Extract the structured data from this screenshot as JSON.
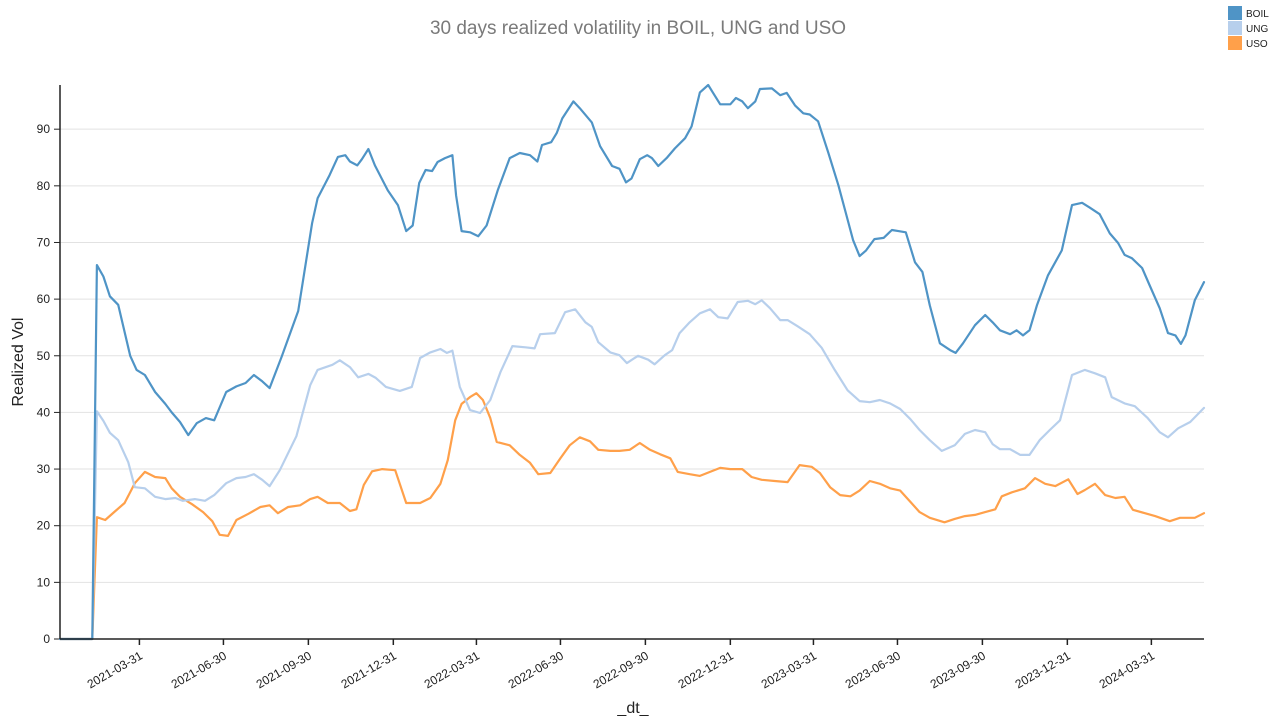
{
  "chart_data": {
    "type": "line",
    "title": "30 days realized volatility in BOIL, UNG and USO",
    "xlabel": "_dt_",
    "ylabel": "Realized Vol",
    "x_origin": "2021-01-04",
    "x_unit": "days since x_origin",
    "x_range_days": [
      0,
      1239
    ],
    "ylim": [
      0,
      97.8
    ],
    "yticks": [
      0,
      10,
      20,
      30,
      40,
      50,
      60,
      70,
      80,
      90
    ],
    "xticks": [
      "2021-03-31",
      "2021-06-30",
      "2021-09-30",
      "2021-12-31",
      "2022-03-31",
      "2022-06-30",
      "2022-09-30",
      "2022-12-31",
      "2023-03-31",
      "2023-06-30",
      "2023-09-30",
      "2023-12-31",
      "2024-03-31"
    ],
    "grid": true,
    "legend_position": "top-right",
    "series": [
      {
        "name": "BOIL",
        "color": "#4f94c6",
        "x_days": [
          0,
          35,
          40,
          47,
          54,
          63,
          76,
          83,
          92,
          103,
          114,
          121,
          130,
          139,
          148,
          158,
          167,
          180,
          191,
          201,
          210,
          219,
          227,
          240,
          258,
          273,
          279,
          292,
          301,
          309,
          314,
          322,
          327,
          334,
          341,
          355,
          366,
          375,
          382,
          389,
          396,
          403,
          409,
          417,
          425,
          429,
          435,
          444,
          453,
          462,
          474,
          487,
          498,
          509,
          517,
          522,
          532,
          538,
          544,
          556,
          563,
          576,
          585,
          598,
          606,
          613,
          619,
          628,
          636,
          641,
          648,
          657,
          666,
          677,
          684,
          693,
          702,
          707,
          715,
          726,
          732,
          739,
          745,
          753,
          758,
          771,
          780,
          787,
          796,
          805,
          812,
          821,
          832,
          843,
          851,
          859,
          866,
          873,
          882,
          892,
          901,
          908,
          916,
          926,
          934,
          942,
          953,
          964,
          970,
          978,
          991,
          1002,
          1010,
          1018,
          1029,
          1036,
          1043,
          1050,
          1058,
          1070,
          1085,
          1096,
          1107,
          1115,
          1126,
          1137,
          1146,
          1153,
          1161,
          1172,
          1180,
          1191,
          1200,
          1208,
          1214,
          1219,
          1229,
          1239
        ],
        "y": [
          0,
          0,
          66,
          64,
          60.5,
          59,
          50,
          47.5,
          46.6,
          43.6,
          41.5,
          40,
          38.3,
          36,
          38.1,
          39,
          38.6,
          43.6,
          44.6,
          45.2,
          46.6,
          45.5,
          44.3,
          49.8,
          57.9,
          73.4,
          77.8,
          81.9,
          85.1,
          85.4,
          84.3,
          83.6,
          84.7,
          86.5,
          83.6,
          79.2,
          76.6,
          72,
          73,
          80.5,
          82.8,
          82.6,
          84.2,
          84.9,
          85.4,
          78.3,
          72,
          71.8,
          71.1,
          73,
          79.2,
          84.9,
          85.8,
          85.4,
          84.3,
          87.2,
          87.7,
          89.3,
          91.9,
          94.9,
          93.7,
          91.2,
          87,
          83.5,
          83,
          80.6,
          81.3,
          84.7,
          85.4,
          84.9,
          83.5,
          84.9,
          86.6,
          88.4,
          90.5,
          96.5,
          97.8,
          96.5,
          94.4,
          94.4,
          95.5,
          94.9,
          93.7,
          94.9,
          97.1,
          97.2,
          96,
          96.4,
          94.2,
          92.8,
          92.6,
          91.4,
          85.9,
          80.1,
          75.3,
          70.4,
          67.6,
          68.6,
          70.6,
          70.8,
          72.2,
          72,
          71.8,
          66.5,
          64.8,
          58.9,
          52.2,
          51,
          50.5,
          52.2,
          55.4,
          57.2,
          55.9,
          54.5,
          53.8,
          54.5,
          53.6,
          54.5,
          58.9,
          64.2,
          68.6,
          76.6,
          77,
          76.2,
          75,
          71.6,
          69.9,
          67.8,
          67.2,
          65.5,
          62.5,
          58.4,
          54,
          53.6,
          52.1,
          53.6,
          59.8,
          63
        ]
      },
      {
        "name": "UNG",
        "color": "#b7cfec",
        "x_days": [
          0,
          35,
          40,
          47,
          54,
          63,
          74,
          81,
          92,
          103,
          114,
          125,
          133,
          146,
          157,
          167,
          180,
          191,
          201,
          210,
          219,
          227,
          238,
          256,
          271,
          279,
          295,
          303,
          314,
          323,
          334,
          342,
          353,
          368,
          381,
          390,
          401,
          412,
          419,
          425,
          433,
          444,
          455,
          466,
          477,
          490,
          504,
          514,
          520,
          536,
          547,
          558,
          569,
          576,
          583,
          596,
          606,
          614,
          626,
          637,
          644,
          655,
          663,
          671,
          682,
          693,
          704,
          713,
          723,
          734,
          745,
          753,
          760,
          769,
          780,
          788,
          799,
          812,
          825,
          839,
          853,
          866,
          877,
          888,
          899,
          910,
          921,
          931,
          942,
          955,
          969,
          980,
          991,
          1002,
          1010,
          1018,
          1029,
          1040,
          1050,
          1061,
          1072,
          1083,
          1096,
          1110,
          1121,
          1132,
          1139,
          1153,
          1164,
          1178,
          1191,
          1200,
          1211,
          1224,
          1239
        ],
        "y": [
          0,
          0,
          40.2,
          38.5,
          36.4,
          35.1,
          31.2,
          26.8,
          26.6,
          25.1,
          24.7,
          24.9,
          24.4,
          24.7,
          24.4,
          25.4,
          27.5,
          28.4,
          28.6,
          29.1,
          28.1,
          27,
          29.8,
          35.8,
          44.8,
          47.5,
          48.4,
          49.2,
          48,
          46.2,
          46.8,
          46.1,
          44.5,
          43.8,
          44.5,
          49.6,
          50.6,
          51.2,
          50.5,
          50.9,
          44.5,
          40.4,
          39.9,
          42.2,
          47.1,
          51.7,
          51.5,
          51.3,
          53.8,
          54,
          57.7,
          58.2,
          55.9,
          55.1,
          52.4,
          50.6,
          50.1,
          48.7,
          50,
          49.3,
          48.5,
          50.1,
          51,
          54,
          55.9,
          57.5,
          58.2,
          56.8,
          56.6,
          59.5,
          59.7,
          59.1,
          59.8,
          58.4,
          56.3,
          56.3,
          55.2,
          53.8,
          51.4,
          47.5,
          43.9,
          42,
          41.8,
          42.2,
          41.6,
          40.6,
          38.8,
          36.9,
          35.1,
          33.2,
          34.2,
          36.2,
          36.9,
          36.5,
          34.4,
          33.5,
          33.5,
          32.5,
          32.5,
          35.1,
          36.9,
          38.6,
          46.6,
          47.5,
          46.9,
          46.2,
          42.7,
          41.6,
          41.1,
          39,
          36.5,
          35.6,
          37.2,
          38.3,
          40.8
        ]
      },
      {
        "name": "USO",
        "color": "#ffa04a",
        "x_days": [
          0,
          35,
          40,
          49,
          60,
          70,
          81,
          92,
          103,
          114,
          121,
          130,
          143,
          155,
          165,
          173,
          182,
          191,
          204,
          217,
          227,
          236,
          247,
          260,
          271,
          279,
          290,
          303,
          314,
          321,
          329,
          338,
          349,
          363,
          375,
          390,
          401,
          412,
          420,
          428,
          435,
          444,
          451,
          458,
          466,
          473,
          487,
          498,
          509,
          518,
          531,
          542,
          552,
          563,
          574,
          583,
          596,
          606,
          617,
          628,
          639,
          650,
          661,
          669,
          682,
          693,
          704,
          715,
          726,
          739,
          749,
          760,
          774,
          788,
          801,
          814,
          823,
          834,
          845,
          856,
          866,
          877,
          888,
          899,
          910,
          921,
          931,
          942,
          958,
          969,
          980,
          991,
          1002,
          1013,
          1020,
          1031,
          1045,
          1056,
          1067,
          1078,
          1092,
          1102,
          1110,
          1121,
          1132,
          1143,
          1153,
          1162,
          1175,
          1186,
          1202,
          1213,
          1229,
          1239
        ],
        "y": [
          0,
          0,
          21.5,
          21,
          22.6,
          24,
          27.5,
          29.5,
          28.6,
          28.4,
          26.6,
          25.1,
          23.8,
          22.4,
          20.8,
          18.4,
          18.2,
          21,
          22.1,
          23.3,
          23.6,
          22.2,
          23.3,
          23.6,
          24.7,
          25.1,
          24,
          24,
          22.6,
          22.9,
          27.2,
          29.6,
          30,
          29.8,
          24,
          24,
          24.9,
          27.4,
          31.6,
          38.6,
          41.5,
          42.7,
          43.4,
          42.2,
          39,
          34.8,
          34.2,
          32.5,
          31.1,
          29.1,
          29.3,
          31.9,
          34.2,
          35.6,
          34.9,
          33.4,
          33.2,
          33.2,
          33.4,
          34.6,
          33.4,
          32.6,
          31.9,
          29.5,
          29.1,
          28.8,
          29.5,
          30.2,
          30,
          30,
          28.6,
          28.1,
          27.9,
          27.7,
          30.7,
          30.4,
          29.3,
          26.8,
          25.4,
          25.2,
          26.2,
          27.9,
          27.4,
          26.6,
          26.2,
          24.2,
          22.4,
          21.4,
          20.6,
          21.2,
          21.7,
          21.9,
          22.4,
          22.9,
          25.2,
          25.9,
          26.6,
          28.4,
          27.4,
          27,
          28.2,
          25.6,
          26.3,
          27.4,
          25.4,
          24.9,
          25.1,
          22.8,
          22.2,
          21.7,
          20.8,
          21.4,
          21.4,
          22.2
        ]
      }
    ]
  }
}
